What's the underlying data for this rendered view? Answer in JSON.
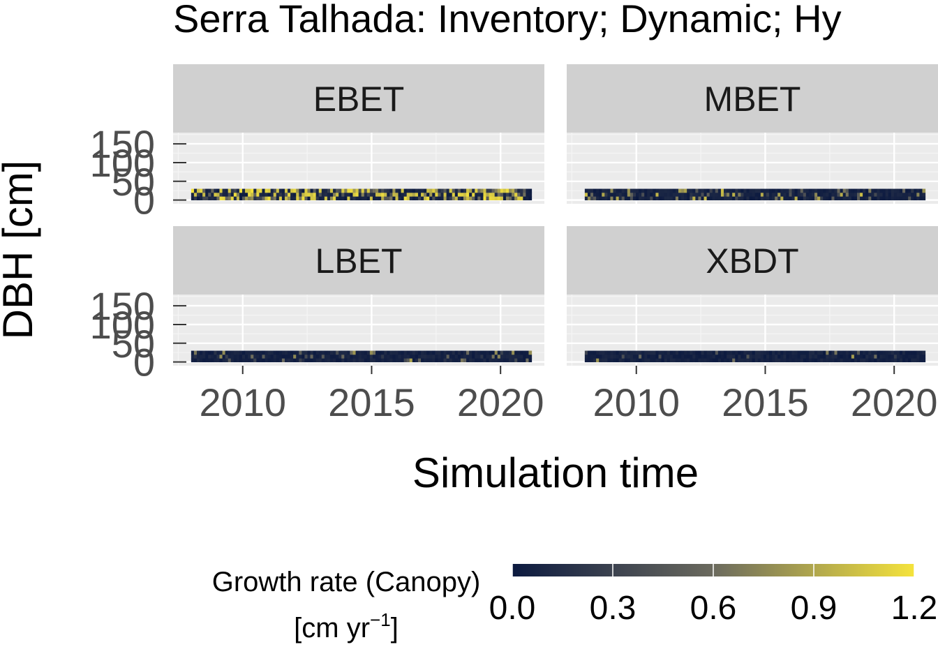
{
  "chart_data": {
    "type": "heatmap",
    "title": "Serra Talhada: Inventory; Dynamic; Hy",
    "xlabel": "Simulation time",
    "ylabel": "DBH [cm]",
    "xlim": [
      2007.3,
      2021.7
    ],
    "ylim": [
      -10,
      180
    ],
    "x_ticks": [
      2010,
      2015,
      2020
    ],
    "x_tick_labels": [
      "2010",
      "2015",
      "2020"
    ],
    "y_ticks": [
      0,
      50,
      100,
      150
    ],
    "y_tick_labels": [
      "0",
      "50",
      "100",
      "150"
    ],
    "grid": true,
    "x_range_data": [
      2008.0,
      2021.2
    ],
    "dbh_band": [
      0,
      30
    ],
    "facets": [
      {
        "label": "EBET",
        "growth_pattern": "high"
      },
      {
        "label": "MBET",
        "growth_pattern": "medium"
      },
      {
        "label": "LBET",
        "growth_pattern": "low"
      },
      {
        "label": "XBDT",
        "growth_pattern": "sparse"
      }
    ],
    "legend": {
      "title_line1": "Growth rate (Canopy)",
      "title_line2_prefix": "[cm  yr",
      "title_line2_sup": "−1",
      "title_line2_suffix": "]",
      "position": "bottom",
      "range": [
        0.0,
        1.2
      ],
      "ticks": [
        0.0,
        0.3,
        0.6,
        0.9,
        1.2
      ],
      "tick_labels": [
        "0.0",
        "0.3",
        "0.6",
        "0.9",
        "1.2"
      ],
      "color_low": "#0c1a40",
      "color_mid": "#6b6a5e",
      "color_high": "#f5e33c"
    }
  }
}
